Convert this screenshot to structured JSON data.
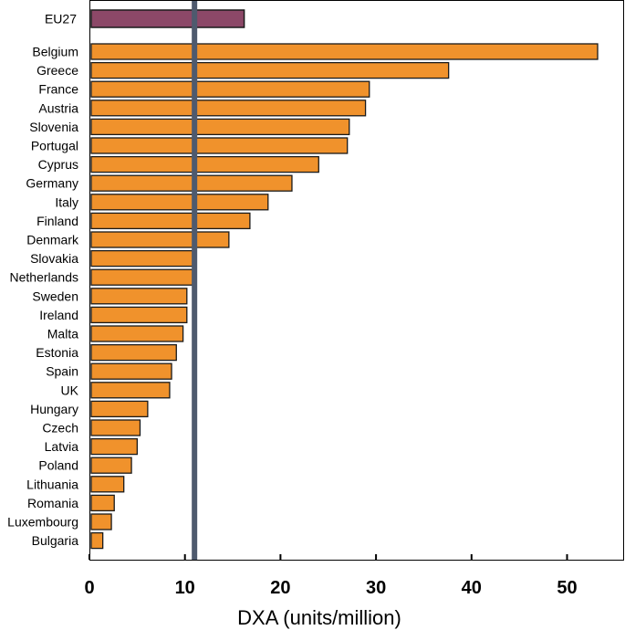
{
  "chart_data": {
    "type": "bar",
    "orientation": "horizontal",
    "title": "",
    "xlabel": "DXA (units/million)",
    "ylabel": "",
    "xlim": [
      0,
      56
    ],
    "xticks": [
      0,
      10,
      20,
      30,
      40,
      50
    ],
    "reference_line": 11,
    "grid": false,
    "highlight": {
      "category": "EU27",
      "value": 16.2
    },
    "categories": [
      "Belgium",
      "Greece",
      "France",
      "Austria",
      "Slovenia",
      "Portugal",
      "Cyprus",
      "Germany",
      "Italy",
      "Finland",
      "Denmark",
      "Slovakia",
      "Netherlands",
      "Sweden",
      "Ireland",
      "Malta",
      "Estonia",
      "Spain",
      "UK",
      "Hungary",
      "Czech",
      "Latvia",
      "Poland",
      "Lithuania",
      "Romania",
      "Luxembourg",
      "Bulgaria"
    ],
    "values": [
      53.2,
      37.6,
      29.3,
      28.9,
      27.2,
      27.0,
      24.0,
      21.2,
      18.7,
      16.8,
      14.6,
      10.8,
      10.8,
      10.2,
      10.2,
      9.8,
      9.1,
      8.6,
      8.4,
      6.1,
      5.3,
      5.0,
      4.4,
      3.6,
      2.6,
      2.3,
      1.4
    ],
    "colors": {
      "bar": "#f0922c",
      "highlight_bar": "#8c4868",
      "reference_line": "#4e5a6e",
      "bar_border": "#1a1a1a"
    }
  }
}
